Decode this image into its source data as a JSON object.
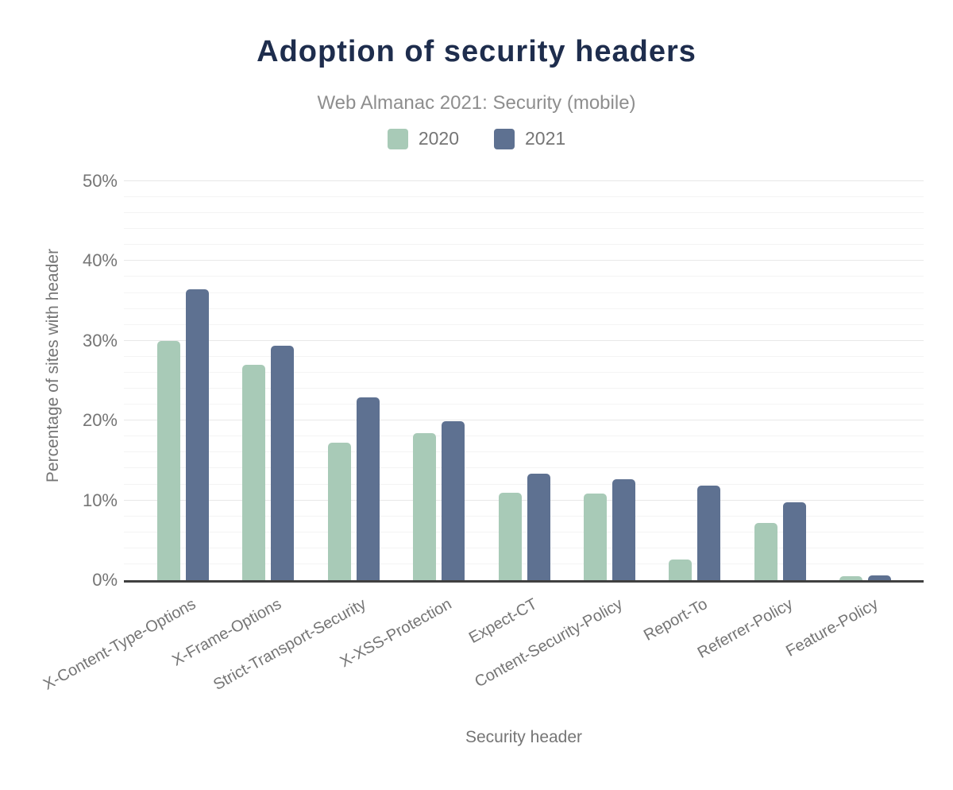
{
  "chart_data": {
    "type": "bar",
    "title": "Adoption of security headers",
    "subtitle": "Web Almanac 2021: Security (mobile)",
    "xlabel": "Security header",
    "ylabel": "Percentage of sites with header",
    "categories": [
      "X-Content-Type-Options",
      "X-Frame-Options",
      "Strict-Transport-Security",
      "X-XSS-Protection",
      "Expect-CT",
      "Content-Security-Policy",
      "Report-To",
      "Referrer-Policy",
      "Feature-Policy"
    ],
    "series": [
      {
        "name": "2020",
        "color": "#a8cab7",
        "values": [
          30.0,
          27.0,
          17.2,
          18.4,
          11.0,
          10.9,
          2.6,
          7.2,
          0.5
        ]
      },
      {
        "name": "2021",
        "color": "#5e7191",
        "values": [
          36.5,
          29.4,
          22.9,
          19.9,
          13.3,
          12.7,
          11.9,
          9.8,
          0.6
        ]
      }
    ],
    "ylim": [
      0,
      50
    ],
    "yticks": [
      0,
      10,
      20,
      30,
      40,
      50
    ],
    "ytick_labels": [
      "0%",
      "10%",
      "20%",
      "30%",
      "40%",
      "50%"
    ],
    "grid": {
      "minor_step": 2,
      "major_step": 10,
      "legend_position": "top"
    }
  },
  "colors": {
    "title": "#1e2d4d",
    "muted_text": "#757575",
    "subtitle_text": "#8e8e8e",
    "axis_line": "#404040",
    "grid_major": "#e8e8e8",
    "grid_minor": "#f4f4f4",
    "background": "#ffffff"
  }
}
